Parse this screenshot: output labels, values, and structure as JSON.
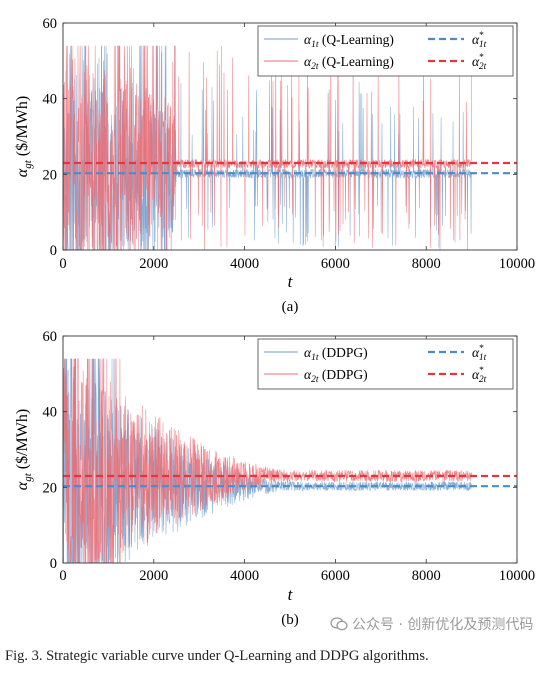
{
  "figure": {
    "caption": "Fig. 3.     Strategic variable curve under Q-Learning and DDPG algorithms.",
    "watermark": "公众号 · 创新优化及预测代码"
  },
  "colors": {
    "blue": "#6e9fcf",
    "red": "#ec6b72",
    "blue_dash": "#4a8cc8",
    "red_dash": "#e0383f"
  },
  "chart_data": [
    {
      "type": "line",
      "panel_label": "(a)",
      "xlabel": "t",
      "ylabel": "α_gt ($/MWh)",
      "xlim": [
        0,
        10000
      ],
      "ylim": [
        0,
        60
      ],
      "xticks": [
        0,
        2000,
        4000,
        6000,
        8000,
        10000
      ],
      "yticks": [
        0,
        20,
        40,
        60
      ],
      "grid": false,
      "legend": "top-right",
      "series": [
        {
          "name": "α1t (Q-Learning)",
          "color": "blue",
          "style": "solid",
          "x_range": [
            0,
            9000
          ],
          "clip": [
            0,
            54
          ],
          "mean": 20.2,
          "spike_max": 45,
          "spike_min": 0,
          "burn_in": 2500
        },
        {
          "name": "α2t (Q-Learning)",
          "color": "red",
          "style": "solid",
          "x_range": [
            0,
            9000
          ],
          "clip": [
            0,
            54
          ],
          "mean": 22.8,
          "spike_max": 54,
          "spike_min": 0,
          "burn_in": 2500
        },
        {
          "name": "α1t*",
          "color": "blue_dash",
          "style": "dashed",
          "values": [
            20.3,
            20.3
          ],
          "x": [
            0,
            10000
          ]
        },
        {
          "name": "α2t*",
          "color": "red_dash",
          "style": "dashed",
          "values": [
            23.0,
            23.0
          ],
          "x": [
            0,
            10000
          ]
        }
      ]
    },
    {
      "type": "line",
      "panel_label": "(b)",
      "xlabel": "t",
      "ylabel": "α_gt ($/MWh)",
      "xlim": [
        0,
        10000
      ],
      "ylim": [
        0,
        60
      ],
      "xticks": [
        0,
        2000,
        4000,
        6000,
        8000,
        10000
      ],
      "yticks": [
        0,
        20,
        40,
        60
      ],
      "grid": false,
      "legend": "top-right",
      "series": [
        {
          "name": "α1t (DDPG)",
          "color": "blue",
          "style": "solid",
          "x_range": [
            0,
            9000
          ],
          "clip": [
            0,
            54
          ],
          "mean": 20.3,
          "start_amplitude": 34,
          "end_amplitude": 1.2,
          "decay_until": 5000
        },
        {
          "name": "α2t (DDPG)",
          "color": "red",
          "style": "solid",
          "x_range": [
            0,
            9000
          ],
          "clip": [
            0,
            54
          ],
          "mean": 23.0,
          "start_amplitude": 34,
          "end_amplitude": 1.6,
          "decay_until": 5000
        },
        {
          "name": "α1t*",
          "color": "blue_dash",
          "style": "dashed",
          "values": [
            20.3,
            20.3
          ],
          "x": [
            0,
            10000
          ]
        },
        {
          "name": "α2t*",
          "color": "red_dash",
          "style": "dashed",
          "values": [
            23.0,
            23.0
          ],
          "x": [
            0,
            10000
          ]
        }
      ]
    }
  ]
}
